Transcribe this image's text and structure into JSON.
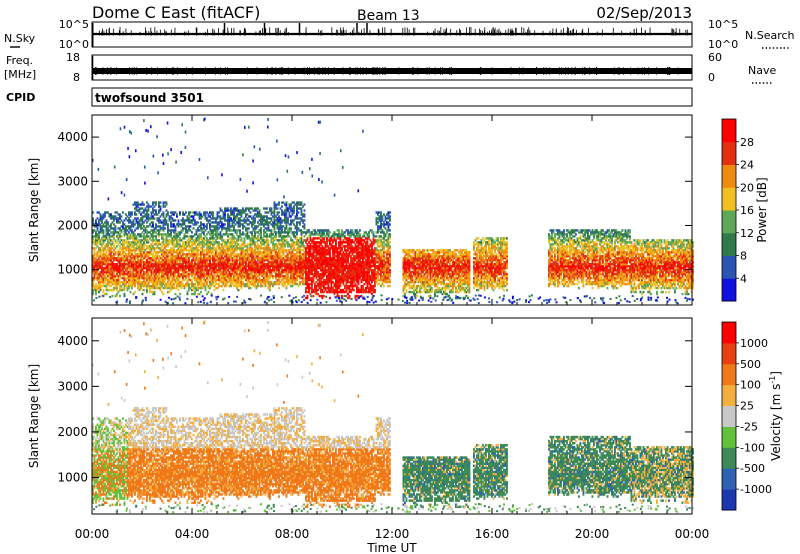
{
  "header": {
    "title": "Dome C East (fitACF)",
    "beam": "Beam 13",
    "date": "02/Sep/2013"
  },
  "strip_nsky": {
    "left_label": "N.Sky",
    "left_ticks": [
      "10^5",
      "10^0"
    ],
    "right_ticks": [
      "10^5",
      "10^0"
    ],
    "right_label": "N.Search"
  },
  "strip_freq": {
    "left_label_line1": "Freq.",
    "left_label_line2": "[MHz]",
    "left_ticks": [
      "18",
      "8"
    ],
    "right_ticks": [
      "60",
      "0"
    ],
    "right_label": "Nave"
  },
  "strip_cpid": {
    "left_label": "CPID",
    "program": "twofsound 3501"
  },
  "xaxis": {
    "label": "Time UT",
    "ticks": [
      "00:00",
      "04:00",
      "08:00",
      "12:00",
      "16:00",
      "20:00",
      "00:00"
    ]
  },
  "chart_data": [
    {
      "type": "heatmap",
      "name": "power",
      "ylabel": "Slant Range [km]",
      "xlim_hours": [
        0,
        24
      ],
      "ylim_km": [
        200,
        4500
      ],
      "yticks": [
        "1000",
        "2000",
        "3000",
        "4000"
      ],
      "colorbar_label": "Power [dB]",
      "colorbar_ticks": [
        "28",
        "24",
        "20",
        "16",
        "12",
        "8",
        "4"
      ],
      "colorbar_colors": [
        "#1010e0",
        "#2a55b5",
        "#2f7a4a",
        "#5fa858",
        "#f0c020",
        "#ee8a10",
        "#e23010",
        "#ff0000"
      ]
    },
    {
      "type": "heatmap",
      "name": "velocity",
      "ylabel": "Slant Range [km]",
      "xlim_hours": [
        0,
        24
      ],
      "ylim_km": [
        200,
        4500
      ],
      "yticks": [
        "1000",
        "2000",
        "3000",
        "4000"
      ],
      "colorbar_label": "Velocity [m s-1]",
      "colorbar_ticks": [
        "1000",
        "500",
        "100",
        "25",
        "-25",
        "-100",
        "-500",
        "-1000"
      ],
      "colorbar_colors": [
        "#1b36b0",
        "#2d63b0",
        "#3c8a55",
        "#62c13a",
        "#c8c8c8",
        "#f4ae40",
        "#f07818",
        "#e84010",
        "#ff0000"
      ]
    }
  ]
}
